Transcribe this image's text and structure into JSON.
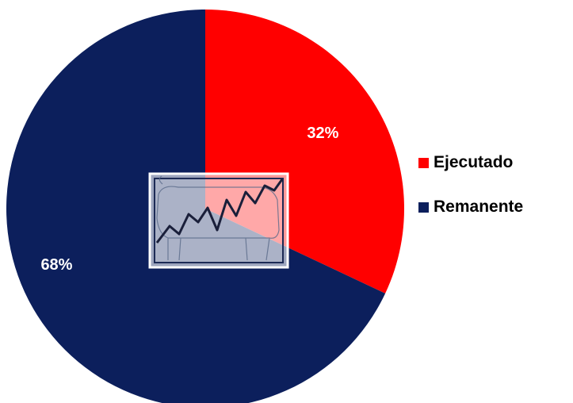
{
  "chart_data": {
    "type": "pie",
    "categories": [
      "Ejecutado",
      "Remanente"
    ],
    "values": [
      32,
      68
    ],
    "data_labels": [
      "32%",
      "68%"
    ],
    "colors": [
      "#ff0000",
      "#0c1f5c"
    ],
    "legend_position": "right",
    "title": "",
    "start_angle": "12 o'clock",
    "direction": "clockwise"
  },
  "overlay": {
    "icon": "cow-stock-chart-icon",
    "frame_color": "#c9cfe0"
  }
}
